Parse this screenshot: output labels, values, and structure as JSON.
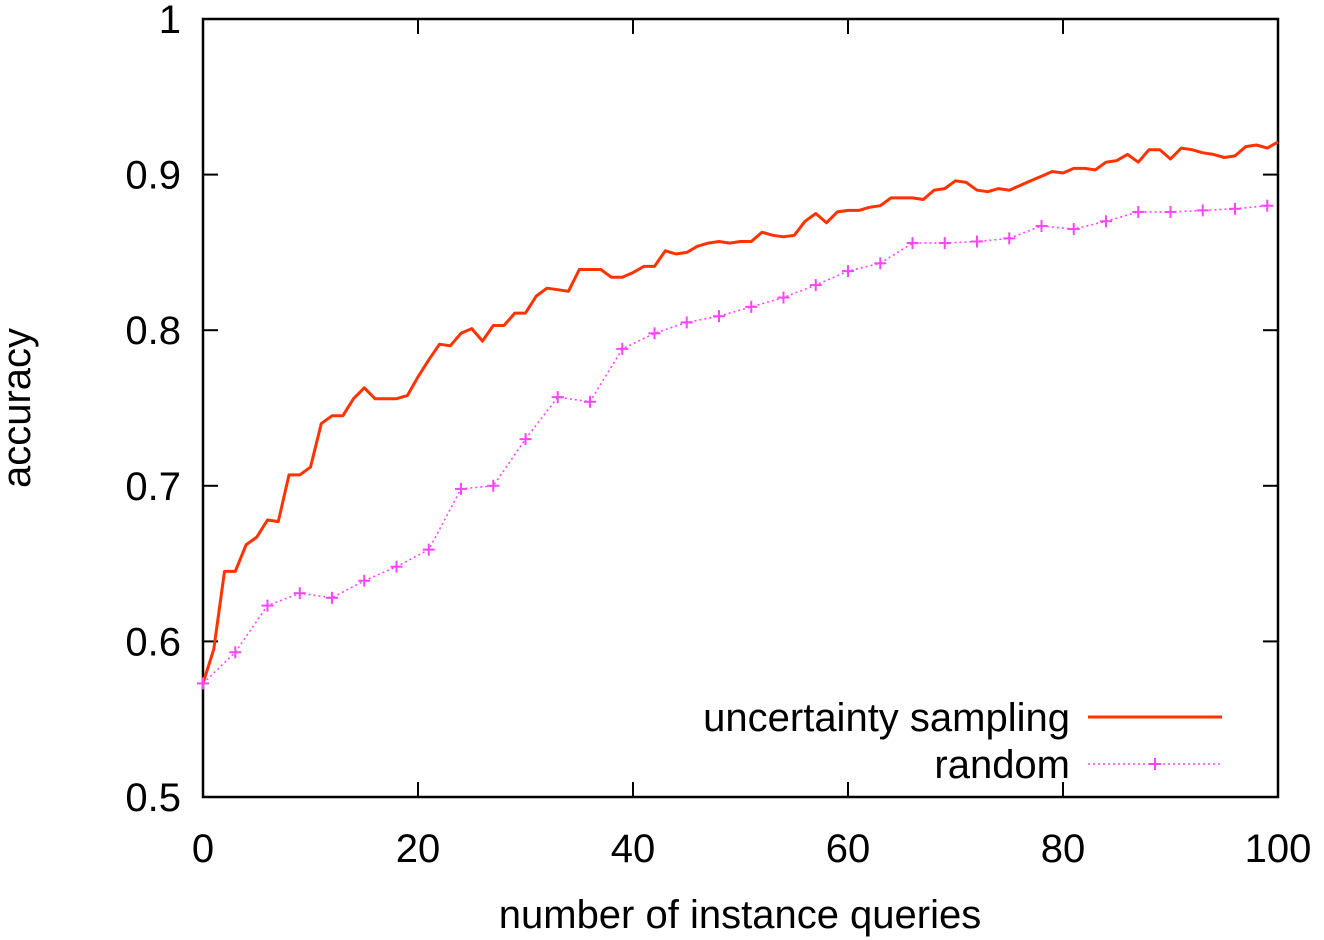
{
  "chart_data": {
    "type": "line",
    "title": "",
    "xlabel": "number of instance queries",
    "ylabel": "accuracy",
    "xlim": [
      0,
      100
    ],
    "ylim": [
      0.5,
      1
    ],
    "x_ticks": [
      0,
      20,
      40,
      60,
      80,
      100
    ],
    "x_tick_labels": [
      "0",
      "20",
      "40",
      "60",
      "80",
      "100"
    ],
    "y_ticks": [
      0.5,
      0.6,
      0.7,
      0.8,
      0.9,
      1.0
    ],
    "y_tick_labels": [
      "0.5",
      "0.6",
      "0.7",
      "0.8",
      "0.9",
      "1"
    ],
    "grid": false,
    "legend_position": "bottom-right",
    "series": [
      {
        "name": "uncertainty sampling",
        "color": "#ff3300",
        "style": "solid",
        "x": [
          0,
          1,
          2,
          3,
          4,
          5,
          6,
          7,
          8,
          9,
          10,
          11,
          12,
          13,
          14,
          15,
          16,
          17,
          18,
          19,
          20,
          21,
          22,
          23,
          24,
          25,
          26,
          27,
          28,
          29,
          30,
          31,
          32,
          33,
          34,
          35,
          36,
          37,
          38,
          39,
          40,
          41,
          42,
          43,
          44,
          45,
          46,
          47,
          48,
          49,
          50,
          51,
          52,
          53,
          54,
          55,
          56,
          57,
          58,
          59,
          60,
          61,
          62,
          63,
          64,
          65,
          66,
          67,
          68,
          69,
          70,
          71,
          72,
          73,
          74,
          75,
          76,
          77,
          78,
          79,
          80,
          81,
          82,
          83,
          84,
          85,
          86,
          87,
          88,
          89,
          90,
          91,
          92,
          93,
          94,
          95,
          96,
          97,
          98,
          99,
          100
        ],
        "y": [
          0.573,
          0.595,
          0.645,
          0.645,
          0.662,
          0.667,
          0.678,
          0.677,
          0.707,
          0.707,
          0.712,
          0.74,
          0.745,
          0.745,
          0.756,
          0.763,
          0.756,
          0.756,
          0.756,
          0.758,
          0.77,
          0.781,
          0.791,
          0.79,
          0.798,
          0.801,
          0.793,
          0.803,
          0.803,
          0.811,
          0.811,
          0.822,
          0.827,
          0.826,
          0.825,
          0.839,
          0.839,
          0.839,
          0.834,
          0.834,
          0.837,
          0.841,
          0.841,
          0.851,
          0.849,
          0.85,
          0.854,
          0.856,
          0.857,
          0.856,
          0.857,
          0.857,
          0.863,
          0.861,
          0.86,
          0.861,
          0.87,
          0.875,
          0.869,
          0.876,
          0.877,
          0.877,
          0.879,
          0.88,
          0.885,
          0.885,
          0.885,
          0.884,
          0.89,
          0.891,
          0.896,
          0.895,
          0.89,
          0.889,
          0.891,
          0.89,
          0.893,
          0.896,
          0.899,
          0.902,
          0.901,
          0.904,
          0.904,
          0.903,
          0.908,
          0.909,
          0.913,
          0.908,
          0.916,
          0.916,
          0.91,
          0.917,
          0.916,
          0.914,
          0.913,
          0.911,
          0.912,
          0.918,
          0.919,
          0.917,
          0.921
        ]
      },
      {
        "name": "random",
        "color": "#ff44ff",
        "style": "dotted",
        "marker": "plus",
        "x": [
          0,
          3,
          6,
          9,
          12,
          15,
          18,
          21,
          24,
          27,
          30,
          33,
          36,
          39,
          42,
          45,
          48,
          51,
          54,
          57,
          60,
          63,
          66,
          69,
          72,
          75,
          78,
          81,
          84,
          87,
          90,
          93,
          96,
          99
        ],
        "y": [
          0.573,
          0.593,
          0.623,
          0.631,
          0.628,
          0.639,
          0.648,
          0.659,
          0.698,
          0.7,
          0.73,
          0.757,
          0.754,
          0.788,
          0.798,
          0.805,
          0.809,
          0.815,
          0.821,
          0.829,
          0.838,
          0.843,
          0.856,
          0.856,
          0.857,
          0.859,
          0.867,
          0.865,
          0.87,
          0.876,
          0.876,
          0.877,
          0.878,
          0.88
        ]
      }
    ]
  }
}
